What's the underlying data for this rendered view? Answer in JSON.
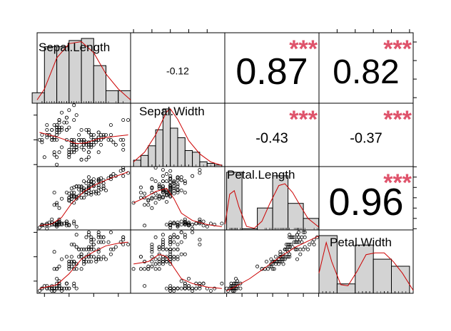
{
  "chart_data": {
    "type": "scatter",
    "variables": [
      "Sepal.Length",
      "Sepal.Width",
      "Petal.Length",
      "Petal.Width"
    ],
    "colors": {
      "points": "#000000",
      "smooth": "#cc0000",
      "stars": "#df536b",
      "hist_fill": "#d3d3d3",
      "density": "#cc0000"
    },
    "ranges": {
      "Sepal.Length": [
        4.2,
        8.0
      ],
      "Sepal.Width": [
        1.92,
        4.48
      ],
      "Petal.Length": [
        0.88,
        7.02
      ],
      "Petal.Width": [
        0.0,
        2.6
      ]
    },
    "ticks": {
      "Sepal.Length": [
        "4.5",
        "5.5",
        "6.5",
        "7.5"
      ],
      "Sepal.Width": [
        "2.0",
        "2.5",
        "3.0",
        "3.5",
        "4.0"
      ],
      "Petal.Length": [
        "1",
        "2",
        "3",
        "4",
        "5",
        "6",
        "7"
      ],
      "Petal.Width": [
        "0.5",
        "1.0",
        "1.5",
        "2.0",
        "2.5"
      ]
    },
    "left_ticks": {
      "Sepal.Width": [
        "2.0",
        "3.0",
        "4.0"
      ],
      "Petal.Width": [
        "0.5",
        "1.5",
        "2.5"
      ]
    },
    "right_ticks": {
      "Sepal.Length": [
        "4.5",
        "5.5",
        "6.5",
        "7.5"
      ],
      "Petal.Length": [
        "1",
        "2",
        "3",
        "4",
        "5",
        "6",
        "7"
      ]
    },
    "correlations": [
      {
        "row": 0,
        "col": 1,
        "value": "-0.12",
        "stars": ""
      },
      {
        "row": 0,
        "col": 2,
        "value": "0.87",
        "stars": "***"
      },
      {
        "row": 0,
        "col": 3,
        "value": "0.82",
        "stars": "***"
      },
      {
        "row": 1,
        "col": 2,
        "value": "-0.43",
        "stars": "***"
      },
      {
        "row": 1,
        "col": 3,
        "value": "-0.37",
        "stars": "***"
      },
      {
        "row": 2,
        "col": 3,
        "value": "0.96",
        "stars": "***"
      }
    ],
    "histograms": {
      "Sepal.Length": {
        "breaks": [
          4.0,
          4.5,
          5.0,
          5.5,
          6.0,
          6.5,
          7.0,
          7.5,
          8.0
        ],
        "counts": [
          5,
          27,
          27,
          30,
          31,
          18,
          6,
          6
        ]
      },
      "Sepal.Width": {
        "breaks": [
          2.0,
          2.2,
          2.4,
          2.6,
          2.8,
          3.0,
          3.2,
          3.4,
          3.6,
          3.8,
          4.0,
          4.2,
          4.4
        ],
        "counts": [
          4,
          7,
          13,
          23,
          36,
          24,
          18,
          10,
          9,
          3,
          2,
          1
        ]
      },
      "Petal.Length": {
        "breaks": [
          1,
          2,
          3,
          4,
          5,
          6,
          7
        ],
        "counts": [
          50,
          1,
          19,
          47,
          23,
          10
        ]
      },
      "Petal.Width": {
        "breaks": [
          0.0,
          0.5,
          1.0,
          1.5,
          2.0,
          2.5
        ],
        "counts": [
          49,
          8,
          41,
          29,
          23
        ]
      }
    },
    "densities": {
      "Sepal.Length": [
        [
          4.2,
          0.05
        ],
        [
          4.5,
          0.22
        ],
        [
          5.0,
          0.7
        ],
        [
          5.5,
          0.92
        ],
        [
          6.0,
          0.95
        ],
        [
          6.5,
          0.78
        ],
        [
          7.0,
          0.45
        ],
        [
          7.5,
          0.22
        ],
        [
          8.0,
          0.05
        ]
      ],
      "Sepal.Width": [
        [
          2.0,
          0.08
        ],
        [
          2.3,
          0.25
        ],
        [
          2.6,
          0.55
        ],
        [
          2.9,
          0.95
        ],
        [
          3.0,
          1.0
        ],
        [
          3.2,
          0.82
        ],
        [
          3.5,
          0.45
        ],
        [
          3.8,
          0.22
        ],
        [
          4.1,
          0.08
        ],
        [
          4.4,
          0.02
        ]
      ],
      "Petal.Length": [
        [
          0.9,
          0.1
        ],
        [
          1.2,
          0.62
        ],
        [
          1.5,
          0.68
        ],
        [
          1.8,
          0.4
        ],
        [
          2.3,
          0.06
        ],
        [
          2.8,
          0.03
        ],
        [
          3.3,
          0.15
        ],
        [
          3.8,
          0.45
        ],
        [
          4.4,
          0.77
        ],
        [
          4.8,
          0.8
        ],
        [
          5.3,
          0.65
        ],
        [
          5.8,
          0.42
        ],
        [
          6.3,
          0.2
        ],
        [
          7.0,
          0.05
        ]
      ],
      "Petal.Width": [
        [
          0.0,
          0.35
        ],
        [
          0.2,
          0.88
        ],
        [
          0.35,
          0.55
        ],
        [
          0.6,
          0.15
        ],
        [
          0.8,
          0.13
        ],
        [
          1.05,
          0.38
        ],
        [
          1.3,
          0.67
        ],
        [
          1.55,
          0.7
        ],
        [
          1.8,
          0.7
        ],
        [
          2.05,
          0.55
        ],
        [
          2.3,
          0.35
        ],
        [
          2.6,
          0.05
        ]
      ]
    },
    "smooth_lines": {
      "1-0": [
        [
          4.3,
          3.3
        ],
        [
          5.0,
          3.12
        ],
        [
          5.5,
          2.95
        ],
        [
          5.8,
          2.85
        ],
        [
          6.2,
          2.88
        ],
        [
          6.7,
          3.05
        ],
        [
          7.2,
          3.12
        ],
        [
          7.9,
          3.2
        ]
      ],
      "2-0": [
        [
          4.3,
          1.3
        ],
        [
          4.8,
          1.45
        ],
        [
          5.2,
          2.1
        ],
        [
          5.6,
          3.45
        ],
        [
          6.1,
          4.6
        ],
        [
          6.6,
          5.3
        ],
        [
          7.2,
          5.9
        ],
        [
          7.9,
          6.5
        ]
      ],
      "2-1": [
        [
          2.0,
          3.5
        ],
        [
          2.3,
          4.0
        ],
        [
          2.6,
          4.6
        ],
        [
          2.9,
          4.9
        ],
        [
          3.1,
          3.9
        ],
        [
          3.3,
          2.5
        ],
        [
          3.6,
          1.8
        ],
        [
          4.0,
          1.4
        ],
        [
          4.4,
          1.2
        ]
      ],
      "3-0": [
        [
          4.3,
          0.2
        ],
        [
          5.0,
          0.35
        ],
        [
          5.5,
          0.8
        ],
        [
          6.0,
          1.4
        ],
        [
          6.5,
          1.7
        ],
        [
          7.0,
          1.95
        ],
        [
          7.5,
          2.05
        ],
        [
          7.9,
          2.1
        ]
      ],
      "3-1": [
        [
          2.0,
          1.2
        ],
        [
          2.4,
          1.3
        ],
        [
          2.7,
          1.6
        ],
        [
          2.9,
          1.5
        ],
        [
          3.1,
          1.05
        ],
        [
          3.3,
          0.6
        ],
        [
          3.6,
          0.4
        ],
        [
          4.0,
          0.25
        ],
        [
          4.4,
          0.2
        ]
      ],
      "3-2": [
        [
          1.0,
          0.1
        ],
        [
          1.5,
          0.25
        ],
        [
          2.5,
          0.6
        ],
        [
          3.5,
          1.05
        ],
        [
          4.5,
          1.5
        ],
        [
          5.5,
          1.9
        ],
        [
          6.5,
          2.2
        ],
        [
          7.0,
          2.35
        ]
      ]
    },
    "points": {
      "Sepal.Length": [
        5.1,
        4.9,
        4.7,
        4.6,
        5.0,
        5.4,
        4.6,
        5.0,
        4.4,
        4.9,
        5.4,
        4.8,
        4.8,
        4.3,
        5.8,
        5.7,
        5.4,
        5.1,
        5.7,
        5.1,
        5.4,
        5.1,
        4.6,
        5.1,
        4.8,
        5.0,
        5.0,
        5.2,
        5.2,
        4.7,
        4.8,
        5.4,
        5.2,
        5.5,
        4.9,
        5.0,
        5.5,
        4.9,
        4.4,
        5.1,
        5.0,
        4.5,
        4.4,
        5.0,
        5.1,
        4.8,
        5.1,
        4.6,
        5.3,
        5.0,
        7.0,
        6.4,
        6.9,
        5.5,
        6.5,
        5.7,
        6.3,
        4.9,
        6.6,
        5.2,
        5.0,
        5.9,
        6.0,
        6.1,
        5.6,
        6.7,
        5.6,
        5.8,
        6.2,
        5.6,
        5.9,
        6.1,
        6.3,
        6.1,
        6.4,
        6.6,
        6.8,
        6.7,
        6.0,
        5.7,
        5.5,
        5.5,
        5.8,
        6.0,
        5.4,
        6.0,
        6.7,
        6.3,
        5.6,
        5.5,
        5.5,
        6.1,
        5.8,
        5.0,
        5.6,
        5.7,
        5.7,
        6.2,
        5.1,
        5.7,
        6.3,
        5.8,
        7.1,
        6.3,
        6.5,
        7.6,
        4.9,
        7.3,
        6.7,
        7.2,
        6.5,
        6.4,
        6.8,
        5.7,
        5.8,
        6.4,
        6.5,
        7.7,
        7.7,
        6.0,
        6.9,
        5.6,
        7.7,
        6.3,
        6.7,
        7.2,
        6.2,
        6.1,
        6.4,
        7.2,
        7.4,
        7.9,
        6.4,
        6.3,
        6.1,
        7.7,
        6.3,
        6.4,
        6.0,
        6.9,
        6.7,
        6.9,
        5.8,
        6.8,
        6.7,
        6.7,
        6.3,
        6.5,
        6.2,
        5.9
      ],
      "Sepal.Width": [
        3.5,
        3.0,
        3.2,
        3.1,
        3.6,
        3.9,
        3.4,
        3.4,
        2.9,
        3.1,
        3.7,
        3.4,
        3.0,
        3.0,
        4.0,
        4.4,
        3.9,
        3.5,
        3.8,
        3.8,
        3.4,
        3.7,
        3.6,
        3.3,
        3.4,
        3.0,
        3.4,
        3.5,
        3.4,
        3.2,
        3.1,
        3.4,
        4.1,
        4.2,
        3.1,
        3.2,
        3.5,
        3.6,
        3.0,
        3.4,
        3.5,
        2.3,
        3.2,
        3.5,
        3.8,
        3.0,
        3.8,
        3.2,
        3.7,
        3.3,
        3.2,
        3.2,
        3.1,
        2.3,
        2.8,
        2.8,
        3.3,
        2.4,
        2.9,
        2.7,
        2.0,
        3.0,
        2.2,
        2.9,
        2.9,
        3.1,
        3.0,
        2.7,
        2.2,
        2.5,
        3.2,
        2.8,
        2.5,
        2.8,
        2.9,
        3.0,
        2.8,
        3.0,
        2.9,
        2.6,
        2.4,
        2.4,
        2.7,
        2.7,
        3.0,
        3.4,
        3.1,
        2.3,
        3.0,
        2.5,
        2.6,
        3.0,
        2.6,
        2.3,
        2.7,
        3.0,
        2.9,
        2.9,
        2.5,
        2.8,
        3.3,
        2.7,
        3.0,
        2.9,
        3.0,
        3.0,
        2.5,
        2.9,
        2.5,
        3.6,
        3.2,
        2.7,
        3.0,
        2.5,
        2.8,
        3.2,
        3.0,
        3.8,
        2.6,
        2.2,
        3.2,
        2.8,
        2.8,
        2.7,
        3.3,
        3.2,
        2.8,
        3.0,
        2.8,
        3.0,
        2.8,
        3.8,
        2.8,
        2.8,
        2.6,
        3.0,
        3.4,
        3.1,
        3.0,
        3.1,
        3.1,
        3.1,
        2.7,
        3.2,
        3.3,
        3.0,
        2.5,
        3.0,
        3.4,
        3.0
      ],
      "Petal.Length": [
        1.4,
        1.4,
        1.3,
        1.5,
        1.4,
        1.7,
        1.4,
        1.5,
        1.4,
        1.5,
        1.5,
        1.6,
        1.4,
        1.1,
        1.2,
        1.5,
        1.3,
        1.4,
        1.7,
        1.5,
        1.7,
        1.5,
        1.0,
        1.7,
        1.9,
        1.6,
        1.6,
        1.5,
        1.4,
        1.6,
        1.6,
        1.5,
        1.5,
        1.4,
        1.5,
        1.2,
        1.3,
        1.4,
        1.3,
        1.5,
        1.3,
        1.3,
        1.3,
        1.6,
        1.9,
        1.4,
        1.6,
        1.4,
        1.5,
        1.4,
        4.7,
        4.5,
        4.9,
        4.0,
        4.6,
        4.5,
        4.7,
        3.3,
        4.6,
        3.9,
        3.5,
        4.2,
        4.0,
        4.7,
        3.6,
        4.4,
        4.5,
        4.1,
        4.5,
        3.9,
        4.8,
        4.0,
        4.9,
        4.7,
        4.3,
        4.4,
        4.8,
        5.0,
        4.5,
        3.5,
        3.8,
        3.7,
        3.9,
        5.1,
        4.5,
        4.5,
        4.7,
        4.4,
        4.1,
        4.0,
        4.4,
        4.6,
        4.0,
        3.3,
        4.2,
        4.2,
        4.2,
        4.3,
        3.0,
        4.1,
        6.0,
        5.1,
        5.9,
        5.6,
        5.8,
        6.6,
        4.5,
        6.3,
        5.8,
        6.1,
        5.1,
        5.3,
        5.5,
        5.0,
        5.1,
        5.3,
        5.5,
        6.7,
        6.9,
        5.0,
        5.7,
        4.9,
        6.7,
        4.9,
        5.7,
        6.0,
        4.8,
        4.9,
        5.6,
        5.8,
        6.1,
        6.4,
        5.6,
        5.1,
        5.6,
        6.1,
        5.6,
        5.5,
        4.8,
        5.4,
        5.6,
        5.1,
        5.1,
        5.9,
        5.7,
        5.2,
        5.0,
        5.2,
        5.4,
        5.1
      ],
      "Petal.Width": [
        0.2,
        0.2,
        0.2,
        0.2,
        0.2,
        0.4,
        0.3,
        0.2,
        0.2,
        0.1,
        0.2,
        0.2,
        0.1,
        0.1,
        0.2,
        0.4,
        0.4,
        0.3,
        0.3,
        0.3,
        0.2,
        0.4,
        0.2,
        0.5,
        0.2,
        0.2,
        0.4,
        0.2,
        0.2,
        0.2,
        0.2,
        0.4,
        0.1,
        0.2,
        0.2,
        0.2,
        0.2,
        0.1,
        0.2,
        0.2,
        0.3,
        0.3,
        0.2,
        0.6,
        0.4,
        0.3,
        0.2,
        0.2,
        0.2,
        0.2,
        1.4,
        1.5,
        1.5,
        1.3,
        1.5,
        1.3,
        1.6,
        1.0,
        1.3,
        1.4,
        1.0,
        1.5,
        1.0,
        1.4,
        1.3,
        1.4,
        1.5,
        1.0,
        1.5,
        1.1,
        1.8,
        1.3,
        1.5,
        1.2,
        1.3,
        1.4,
        1.4,
        1.7,
        1.5,
        1.0,
        1.1,
        1.0,
        1.2,
        1.6,
        1.5,
        1.6,
        1.5,
        1.3,
        1.3,
        1.3,
        1.2,
        1.4,
        1.2,
        1.0,
        1.3,
        1.2,
        1.3,
        1.3,
        1.1,
        1.3,
        2.5,
        1.9,
        2.1,
        1.8,
        2.2,
        2.1,
        1.7,
        1.8,
        1.8,
        2.5,
        2.0,
        1.9,
        2.1,
        2.0,
        2.4,
        2.3,
        1.8,
        2.2,
        2.3,
        1.5,
        2.3,
        2.0,
        2.0,
        1.8,
        2.1,
        1.8,
        1.8,
        1.8,
        2.1,
        1.6,
        1.9,
        2.0,
        2.2,
        1.5,
        1.4,
        2.3,
        2.4,
        1.8,
        1.8,
        2.1,
        2.4,
        2.3,
        1.9,
        2.3,
        2.5,
        2.3,
        1.9,
        2.0,
        2.3,
        1.8
      ]
    }
  }
}
